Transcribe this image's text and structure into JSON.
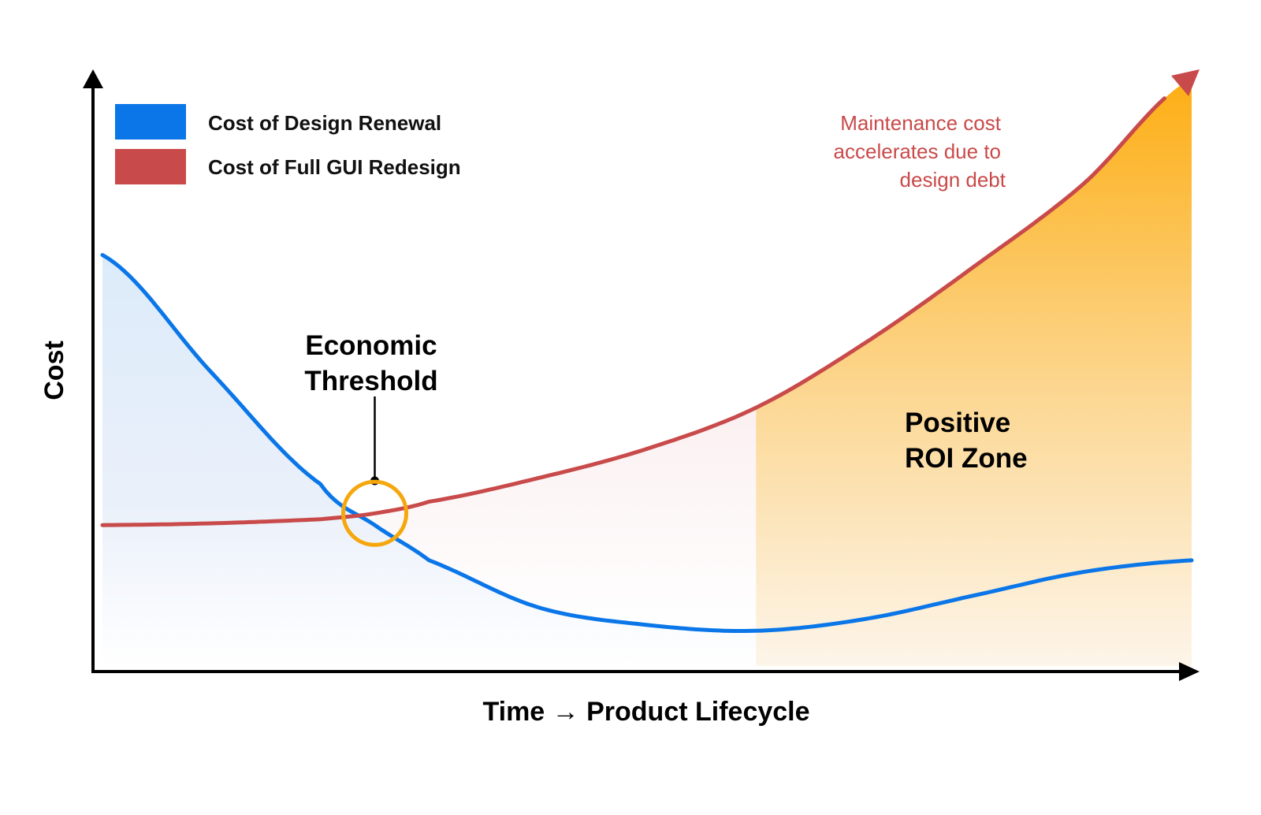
{
  "chart_data": {
    "type": "line",
    "title": "",
    "xlabel": "Time → Product Lifecycle",
    "ylabel": "Cost",
    "xlim": [
      0,
      100
    ],
    "ylim": [
      0,
      100
    ],
    "grid": false,
    "legend_placement": "top-left",
    "x": [
      0,
      10,
      20,
      25,
      30,
      40,
      50,
      60,
      70,
      80,
      90,
      100
    ],
    "series": [
      {
        "name": "Cost of Design Renewal",
        "color": "#0a76e8",
        "values": [
          70,
          50,
          31,
          24,
          18,
          10,
          7,
          6,
          8,
          12,
          16,
          18
        ]
      },
      {
        "name": "Cost of Full GUI Redesign",
        "color": "#c94a4a",
        "values": [
          24,
          24.3,
          25,
          26,
          28,
          32,
          37,
          44,
          55,
          68,
          82,
          100
        ]
      }
    ],
    "annotations": {
      "threshold_label": [
        "Economic",
        "Threshold"
      ],
      "roi_label": [
        "Positive",
        "ROI Zone"
      ],
      "maintenance_note": [
        "Maintenance cost",
        "accelerates due to",
        "design debt"
      ]
    },
    "threshold_x": 25,
    "roi_zone_start_x": 60,
    "colors": {
      "axis": "#000000",
      "threshold_marker": "#f5a70d",
      "roi_top": "#fdae14",
      "roi_bottom": "#fdf3e3",
      "renewal_fill": "#dcebfa",
      "note_text": "#c94a4a"
    }
  }
}
